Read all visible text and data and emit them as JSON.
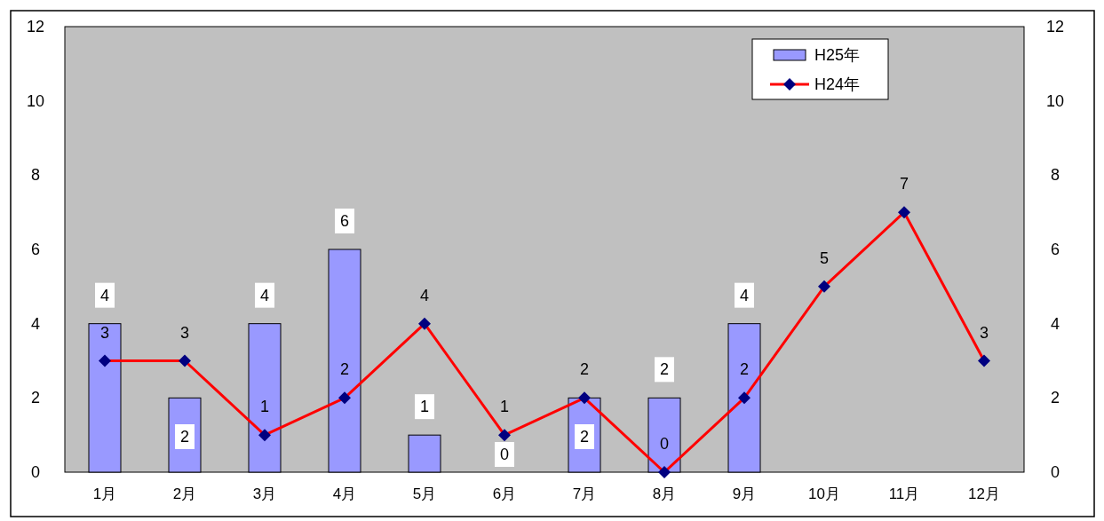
{
  "chart_data": {
    "type": "bar",
    "categories": [
      "1月",
      "2月",
      "3月",
      "4月",
      "5月",
      "6月",
      "7月",
      "8月",
      "9月",
      "10月",
      "11月",
      "12月"
    ],
    "series": [
      {
        "name": "H25年",
        "type": "bar",
        "color": "#9999ff",
        "values": [
          4,
          2,
          4,
          6,
          1,
          0,
          2,
          2,
          4,
          null,
          null,
          null
        ]
      },
      {
        "name": "H24年",
        "type": "line",
        "color": "#ff0000",
        "marker": "diamond",
        "values": [
          3,
          3,
          1,
          2,
          4,
          1,
          2,
          0,
          2,
          5,
          7,
          3
        ]
      }
    ],
    "ylim": [
      0,
      12
    ],
    "yticks": [
      0,
      2,
      4,
      6,
      8,
      10,
      12
    ],
    "y2lim": [
      0,
      12
    ],
    "y2ticks": [
      0,
      2,
      4,
      6,
      8,
      10,
      12
    ],
    "data_labels": true,
    "legend": "top right",
    "grid": false
  }
}
